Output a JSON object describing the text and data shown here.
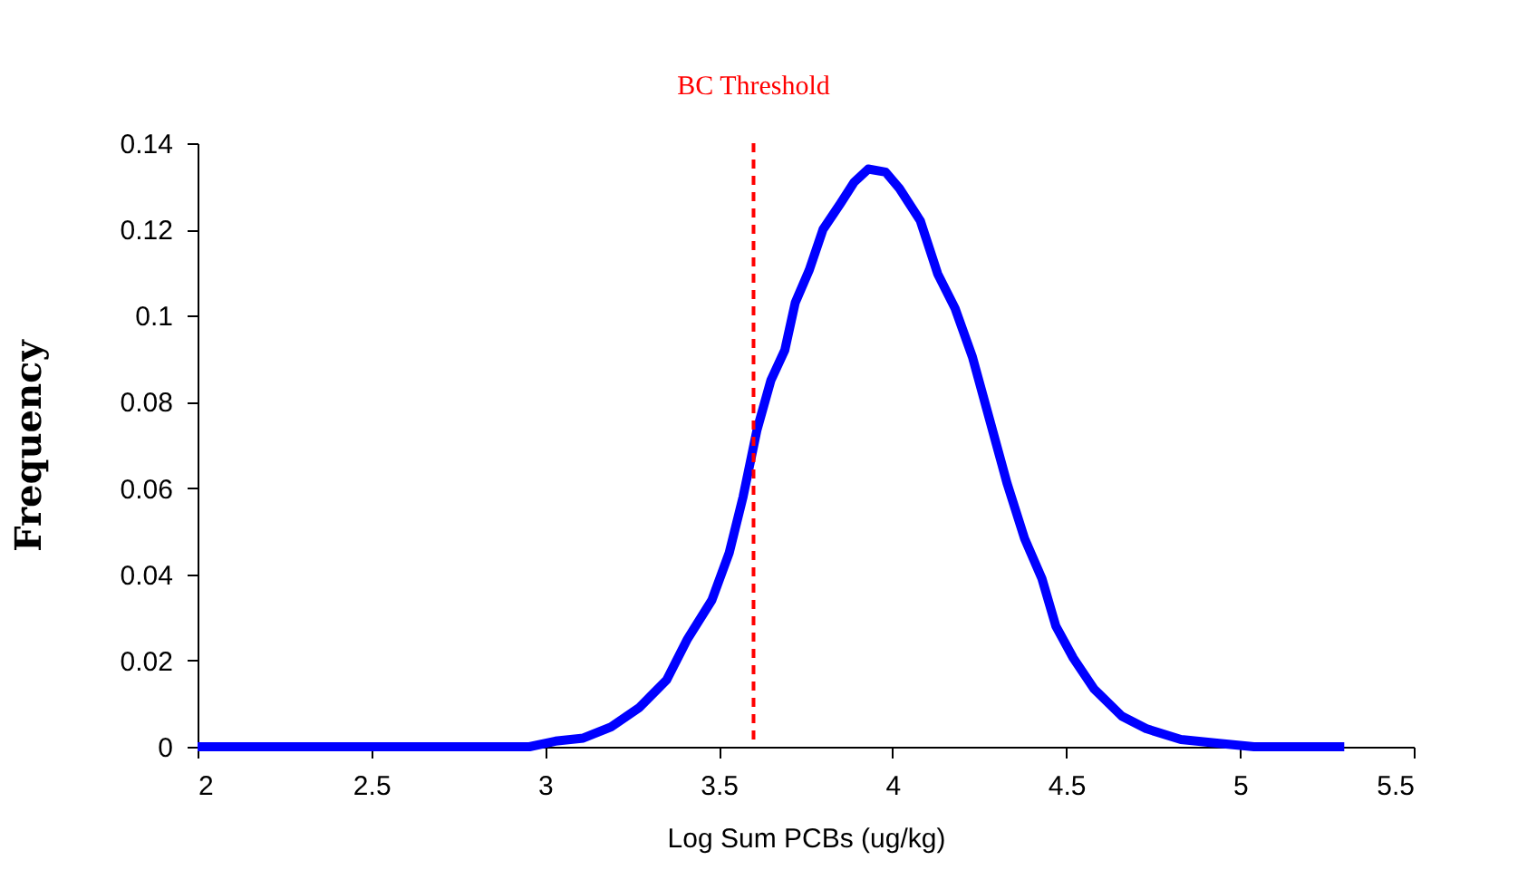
{
  "chart_data": {
    "type": "line",
    "xlabel": "Log Sum PCBs  (ug/kg)",
    "ylabel": "Frequency",
    "x": [
      2,
      2.955,
      3.03,
      3.11,
      3.19,
      3.27,
      3.35,
      3.41,
      3.48,
      3.53,
      3.57,
      3.61,
      3.65,
      3.69,
      3.72,
      3.76,
      3.8,
      3.85,
      3.89,
      3.93,
      3.98,
      4.02,
      4.08,
      4.13,
      4.18,
      4.23,
      4.28,
      4.33,
      4.38,
      4.43,
      4.47,
      4.52,
      4.58,
      4.66,
      4.73,
      4.83,
      4.94,
      5.04,
      5.3
    ],
    "series": [
      {
        "color": "#0000ff",
        "values": [
          0,
          0,
          0.0013,
          0.002,
          0.0046,
          0.009,
          0.0155,
          0.025,
          0.034,
          0.045,
          0.058,
          0.0735,
          0.085,
          0.092,
          0.103,
          0.1105,
          0.12,
          0.126,
          0.131,
          0.134,
          0.1333,
          0.1295,
          0.122,
          0.1097,
          0.1017,
          0.0904,
          0.0757,
          0.061,
          0.0483,
          0.039,
          0.028,
          0.0206,
          0.0134,
          0.0071,
          0.0042,
          0.0017,
          0.0008,
          0,
          0
        ]
      }
    ],
    "xlim": [
      2,
      5.5
    ],
    "xticks": [
      2,
      2.5,
      3,
      3.5,
      4,
      4.5,
      5,
      5.5
    ],
    "ylim": [
      0,
      0.14
    ],
    "yticks": [
      0,
      0.02,
      0.04,
      0.06,
      0.08,
      0.1,
      0.12,
      0.14
    ],
    "ref_lines": [
      {
        "axis": "x",
        "value": 3.6,
        "label": "BC Threshold",
        "color": "#ff0000",
        "line_style": "dashed"
      }
    ],
    "grid": false,
    "marker": "none",
    "line_style": "solid"
  }
}
